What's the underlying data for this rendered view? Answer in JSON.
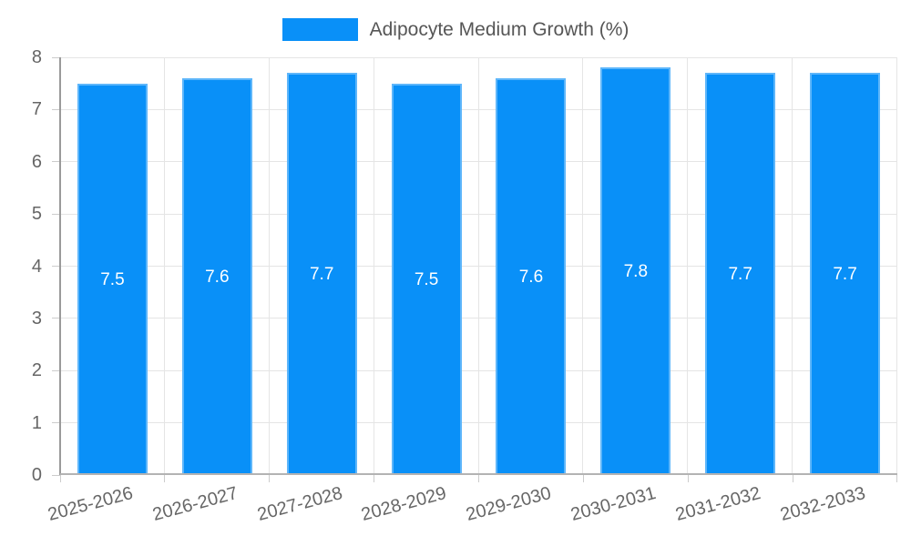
{
  "legend": {
    "label": "Adipocyte Medium Growth (%)"
  },
  "chart_data": {
    "type": "bar",
    "title": "",
    "xlabel": "",
    "ylabel": "",
    "categories": [
      "2025-2026",
      "2026-2027",
      "2027-2028",
      "2028-2029",
      "2029-2030",
      "2030-2031",
      "2031-2032",
      "2032-2033"
    ],
    "series": [
      {
        "name": "Adipocyte Medium Growth (%)",
        "values": [
          7.5,
          7.6,
          7.7,
          7.5,
          7.6,
          7.8,
          7.7,
          7.7
        ]
      }
    ],
    "value_labels": [
      "7.5",
      "7.6",
      "7.7",
      "7.5",
      "7.6",
      "7.8",
      "7.7",
      "7.7"
    ],
    "ylim": [
      0,
      8
    ],
    "yticks": [
      0,
      1,
      2,
      3,
      4,
      5,
      6,
      7,
      8
    ],
    "grid": true,
    "legend_position": "top-center",
    "x_label_rotation_deg": -15,
    "colors": {
      "bar": "#0990f8",
      "grid": "#e5e5e5",
      "tick": "#cccccc",
      "axis": "#9a9a9a",
      "axis_x": "#b3b3b3",
      "axis_text": "#666666",
      "legend_text": "#565656",
      "value_text": "#ffffff"
    }
  }
}
